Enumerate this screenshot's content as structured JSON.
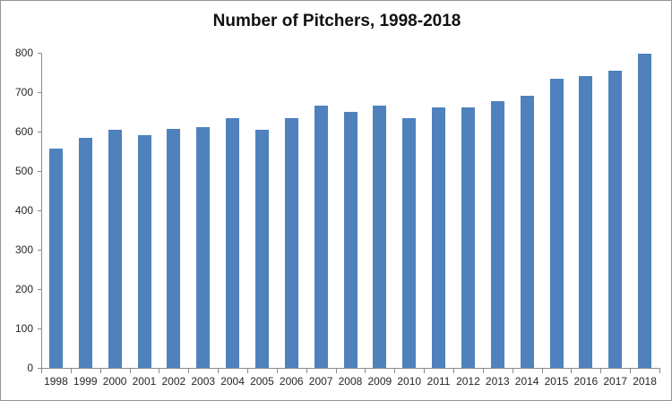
{
  "chart_data": {
    "type": "bar",
    "title": "Number of Pitchers, 1998-2018",
    "categories": [
      "1998",
      "1999",
      "2000",
      "2001",
      "2002",
      "2003",
      "2004",
      "2005",
      "2006",
      "2007",
      "2008",
      "2009",
      "2010",
      "2011",
      "2012",
      "2013",
      "2014",
      "2015",
      "2016",
      "2017",
      "2018"
    ],
    "values": [
      557,
      585,
      605,
      592,
      607,
      612,
      633,
      605,
      635,
      665,
      651,
      665,
      635,
      662,
      662,
      677,
      692,
      735,
      740,
      755,
      798
    ],
    "xlabel": "",
    "ylabel": "",
    "ylim": [
      0,
      800
    ],
    "ytick_interval": 100,
    "yticks": [
      0,
      100,
      200,
      300,
      400,
      500,
      600,
      700,
      800
    ],
    "grid": false,
    "legend": "none",
    "colors": {
      "bar": "#4F81BD",
      "axis": "#8C8C8C",
      "tick_label": "#262626",
      "title": "#111111",
      "background": "#FFFFFF",
      "border": "#959595"
    }
  }
}
